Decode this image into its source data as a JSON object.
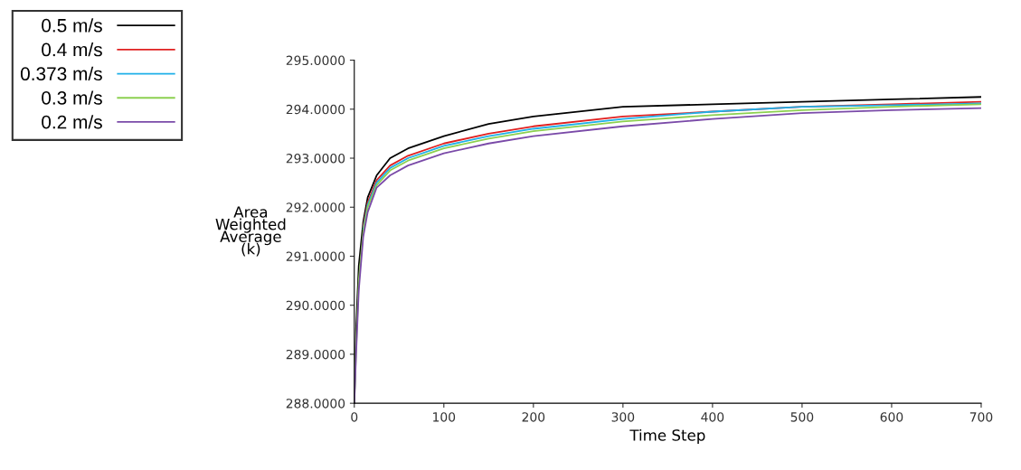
{
  "chart_data": {
    "type": "line",
    "xlabel": "Time Step",
    "ylabel": "Area\nWeighted\nAverage\n(k)",
    "x": [
      0,
      2,
      5,
      10,
      15,
      25,
      40,
      60,
      100,
      150,
      200,
      300,
      400,
      500,
      600,
      700
    ],
    "series": [
      {
        "name": "0.5 m/s",
        "color": "#000000",
        "values": [
          288,
          289.5,
          290.8,
          291.7,
          292.2,
          292.65,
          293.0,
          293.2,
          293.45,
          293.7,
          293.85,
          294.05,
          294.1,
          294.15,
          294.2,
          294.25
        ]
      },
      {
        "name": "0.4 m/s",
        "color": "#e02020",
        "values": [
          null,
          null,
          null,
          291.6,
          292.1,
          292.55,
          292.85,
          293.05,
          293.3,
          293.5,
          293.65,
          293.85,
          293.95,
          294.05,
          294.1,
          294.15
        ]
      },
      {
        "name": "0.373 m/s",
        "color": "#1fb0e8",
        "values": [
          null,
          null,
          null,
          291.55,
          292.05,
          292.5,
          292.8,
          293.0,
          293.25,
          293.45,
          293.6,
          293.8,
          293.95,
          294.05,
          294.08,
          294.12
        ]
      },
      {
        "name": "0.3 m/s",
        "color": "#8cd050",
        "values": [
          288,
          289.1,
          290.5,
          291.5,
          292.0,
          292.45,
          292.75,
          292.95,
          293.2,
          293.4,
          293.55,
          293.75,
          293.88,
          293.98,
          294.05,
          294.1
        ]
      },
      {
        "name": "0.2 m/s",
        "color": "#7a4aa8",
        "values": [
          288,
          289.0,
          290.3,
          291.4,
          291.9,
          292.4,
          292.65,
          292.85,
          293.1,
          293.3,
          293.45,
          293.65,
          293.8,
          293.92,
          293.98,
          294.02
        ]
      }
    ],
    "xlim": [
      0,
      700
    ],
    "xticks": [
      0,
      100,
      200,
      300,
      400,
      500,
      600,
      700
    ],
    "ylim": [
      288,
      295
    ],
    "yticks": [
      {
        "value": 288,
        "label": "288.0000"
      },
      {
        "value": 289,
        "label": "289.0000"
      },
      {
        "value": 290,
        "label": "290.0000"
      },
      {
        "value": 291,
        "label": "291.0000"
      },
      {
        "value": 292,
        "label": "292.0000"
      },
      {
        "value": 293,
        "label": "293.0000"
      },
      {
        "value": 294,
        "label": "294.0000"
      },
      {
        "value": 295,
        "label": "295.0000"
      }
    ],
    "legend": "top left",
    "grid": false,
    "marker": "none",
    "line_style": "solid"
  }
}
